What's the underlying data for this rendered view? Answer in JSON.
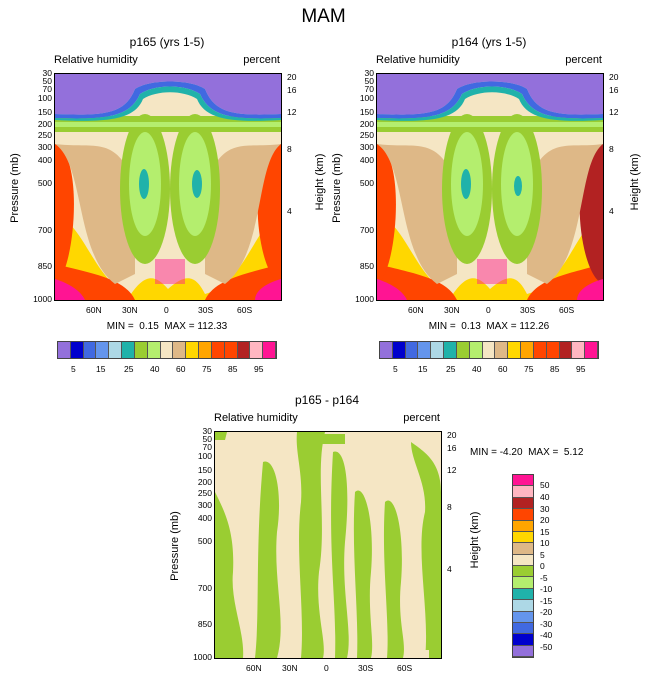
{
  "figure_title": "MAM",
  "colors": {
    "humidity_scale": [
      "#9370db",
      "#0000cd",
      "#4169e1",
      "#6495ed",
      "#add8e6",
      "#20b2aa",
      "#9acd32",
      "#b4ee6e",
      "#f5e6c4",
      "#deb887",
      "#ffd700",
      "#ffa500",
      "#ff4500",
      "#ff4500",
      "#b22222",
      "#ffb6c1",
      "#ff1493"
    ],
    "diff_scale": [
      "#ff1493",
      "#ffb6c1",
      "#b22222",
      "#ff4500",
      "#ffa500",
      "#ffd700",
      "#deb887",
      "#f5e6c4",
      "#9acd32",
      "#b4ee6e",
      "#20b2aa",
      "#add8e6",
      "#6495ed",
      "#4169e1",
      "#0000cd",
      "#9370db"
    ]
  },
  "chart_data": [
    {
      "type": "heatmap",
      "title": "p165 (yrs 1-5)",
      "left_subtitle": "Relative humidity",
      "right_subtitle": "percent",
      "ylabel": "Pressure (mb)",
      "y2label": "Height (km)",
      "x_ticks": [
        "60N",
        "30N",
        "0",
        "30S",
        "60S"
      ],
      "y_ticks": [
        "30",
        "50",
        "70",
        "100",
        "150",
        "200",
        "250",
        "300",
        "400",
        "500",
        "700",
        "850",
        "1000"
      ],
      "y2_ticks": [
        "20",
        "16",
        "12",
        "8",
        "4"
      ],
      "stats": "MIN =  0.15  MAX = 112.33",
      "colorbar_labels": [
        "5",
        "15",
        "25",
        "40",
        "60",
        "75",
        "85",
        "95"
      ]
    },
    {
      "type": "heatmap",
      "title": "p164 (yrs 1-5)",
      "left_subtitle": "Relative humidity",
      "right_subtitle": "percent",
      "ylabel": "Pressure (mb)",
      "y2label": "Height (km)",
      "x_ticks": [
        "60N",
        "30N",
        "0",
        "30S",
        "60S"
      ],
      "y_ticks": [
        "30",
        "50",
        "70",
        "100",
        "150",
        "200",
        "250",
        "300",
        "400",
        "500",
        "700",
        "850",
        "1000"
      ],
      "y2_ticks": [
        "20",
        "16",
        "12",
        "8",
        "4"
      ],
      "stats": "MIN =  0.13  MAX = 112.26",
      "colorbar_labels": [
        "5",
        "15",
        "25",
        "40",
        "60",
        "75",
        "85",
        "95"
      ]
    },
    {
      "type": "heatmap",
      "title": "p165 - p164",
      "left_subtitle": "Relative humidity",
      "right_subtitle": "percent",
      "ylabel": "Pressure (mb)",
      "y2label": "Height (km)",
      "x_ticks": [
        "60N",
        "30N",
        "0",
        "30S",
        "60S"
      ],
      "y_ticks": [
        "30",
        "50",
        "70",
        "100",
        "150",
        "200",
        "250",
        "300",
        "400",
        "500",
        "700",
        "850",
        "1000"
      ],
      "y2_ticks": [
        "20",
        "16",
        "12",
        "8",
        "4"
      ],
      "stats": "MIN = -4.20  MAX =  5.12",
      "colorbar_labels": [
        "50",
        "40",
        "30",
        "20",
        "15",
        "10",
        "5",
        "0",
        "-5",
        "-10",
        "-15",
        "-20",
        "-30",
        "-40",
        "-50"
      ]
    }
  ]
}
